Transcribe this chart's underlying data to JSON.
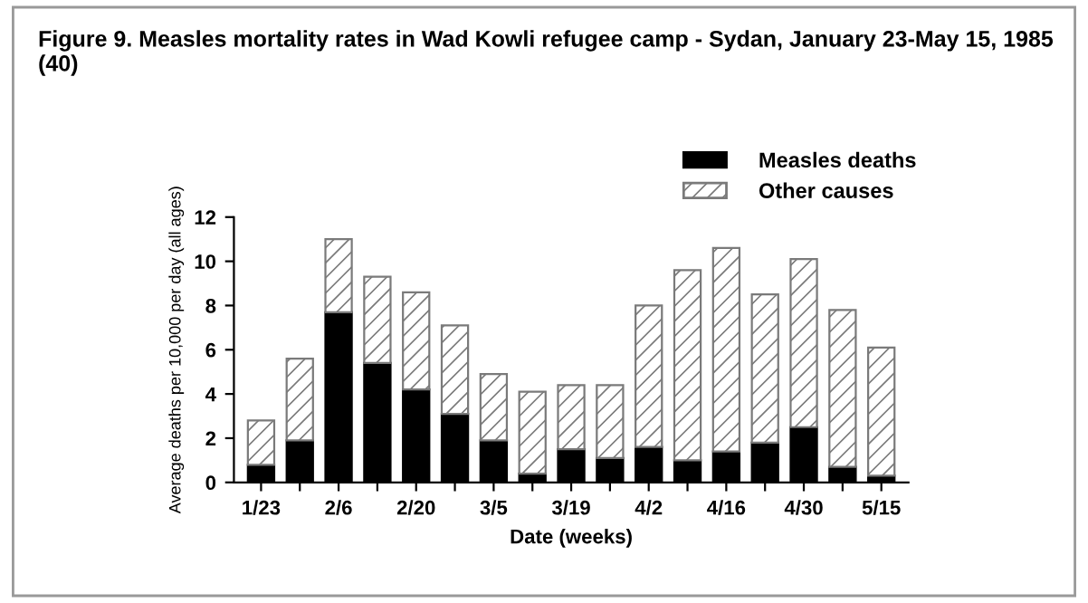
{
  "chart_data": {
    "type": "bar",
    "stacked": true,
    "title": "Figure 9. Measles mortality rates in Wad Kowli refugee camp - Sydan, January 23-May 15, 1985 (40)",
    "xlabel": "Date (weeks)",
    "ylabel": "Average deaths per 10,000 per day (all ages)",
    "categories": [
      "1/23",
      null,
      "2/6",
      null,
      "2/20",
      null,
      "3/5",
      null,
      "3/19",
      null,
      "4/2",
      null,
      "4/16",
      null,
      "4/30",
      null,
      "5/15"
    ],
    "series": [
      {
        "name": "Measles deaths",
        "color": "#000000",
        "values": [
          0.8,
          1.9,
          7.7,
          5.4,
          4.2,
          3.1,
          1.9,
          0.4,
          1.5,
          1.1,
          1.6,
          1.0,
          1.4,
          1.8,
          2.5,
          0.7,
          0.3
        ]
      },
      {
        "name": "Other causes",
        "color": "#7a7a7a",
        "values": [
          2.0,
          3.7,
          3.3,
          3.9,
          4.4,
          4.0,
          3.0,
          3.7,
          2.9,
          3.3,
          6.4,
          8.6,
          9.2,
          6.7,
          7.6,
          7.1,
          5.8
        ]
      }
    ],
    "ylim": [
      0,
      12
    ],
    "yticks": [
      0,
      2,
      4,
      6,
      8,
      10,
      12
    ],
    "grid": false,
    "legend": "top right"
  }
}
